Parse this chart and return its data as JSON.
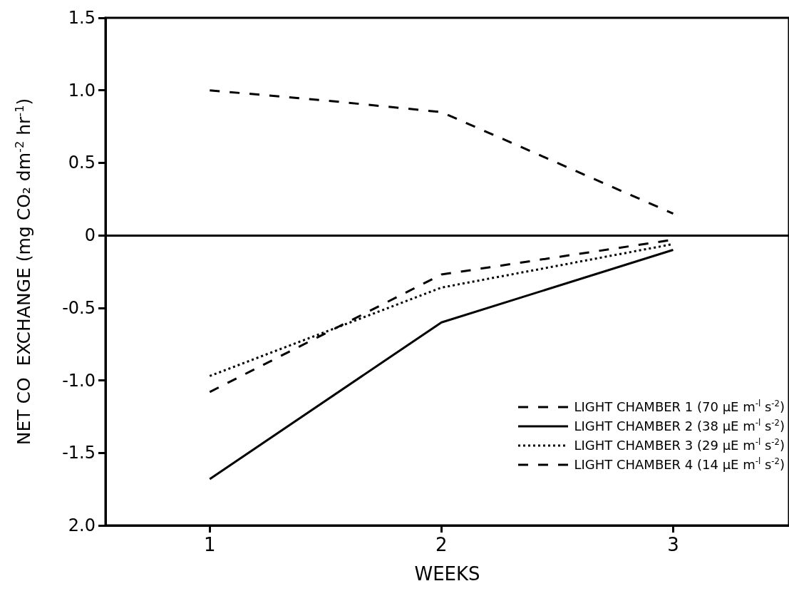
{
  "chart_data": {
    "type": "line",
    "xlabel": "WEEKS",
    "ylabel": "NET CO  EXCHANGE (mg CO₂ dm$^{-2}$ hr$^{-1}$)",
    "xlim": [
      0.55,
      3.5
    ],
    "xticks": [
      1,
      2,
      3
    ],
    "ylim": [
      -2,
      1.5
    ],
    "yticks": [
      {
        "value": -2,
        "label": "2.0"
      },
      {
        "value": -1.5,
        "label": "-1.5"
      },
      {
        "value": -1,
        "label": "-1.0"
      },
      {
        "value": -0.5,
        "label": "-0.5"
      },
      {
        "value": 0,
        "label": "0"
      },
      {
        "value": 0.5,
        "label": "0.5"
      },
      {
        "value": 1,
        "label": "1.0"
      },
      {
        "value": 1.5,
        "label": "1.5"
      }
    ],
    "legend": "bottom right",
    "grid": false,
    "marker": "none",
    "ref_lines": [
      {
        "axis": "y",
        "value": 0,
        "color": "#000000",
        "line_style": "solid"
      }
    ],
    "series": [
      {
        "name": "LIGHT CHAMBER  1  (70 µE m$^{-l}$ s$^{-2}$)",
        "color": "#000000",
        "line_style": "dashed",
        "x": [
          1,
          1.5,
          2,
          2.5,
          3
        ],
        "values": [
          1.0,
          0.93,
          0.85,
          0.5,
          0.15
        ]
      },
      {
        "name": "LIGHT CHAMBER  2  (38 µE m$^{-l}$ s$^{-2}$)",
        "color": "#000000",
        "line_style": "solid",
        "x": [
          1,
          2,
          3
        ],
        "values": [
          -1.68,
          -0.6,
          -0.1
        ]
      },
      {
        "name": "LIGHT CHAMBER  3  (29 µE m$^{-l}$ s$^{-2}$)",
        "color": "#000000",
        "line_style": "dotted",
        "x": [
          1,
          2,
          3
        ],
        "values": [
          -0.97,
          -0.36,
          -0.06
        ]
      },
      {
        "name": "LIGHT CHAMBER  4  (14 µE m$^{-l}$ s$^{-2}$)",
        "color": "#000000",
        "line_style": "dashed",
        "x": [
          1,
          2,
          3
        ],
        "values": [
          -1.08,
          -0.27,
          -0.03
        ]
      }
    ]
  }
}
